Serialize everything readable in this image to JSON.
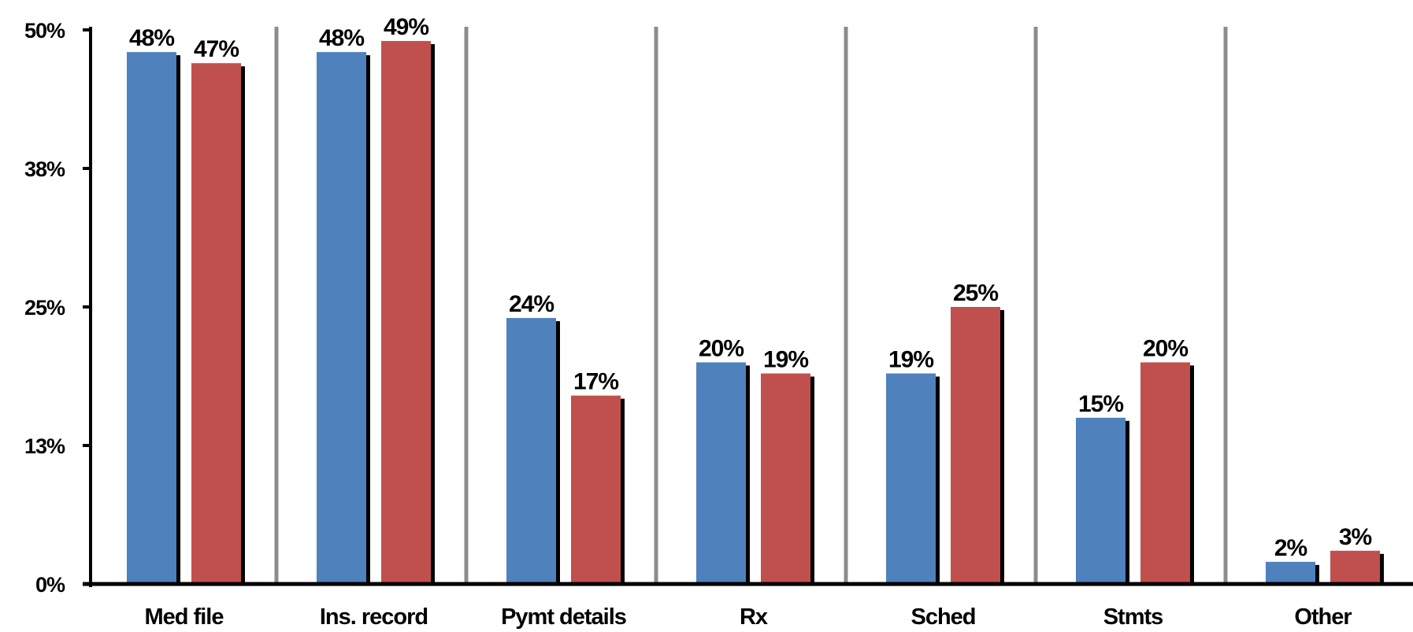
{
  "chart_data": {
    "type": "bar",
    "categories": [
      "Med file",
      "Ins. record",
      "Pymt details",
      "Rx",
      "Sched",
      "Stmts",
      "Other"
    ],
    "series": [
      {
        "values": [
          48,
          48,
          24,
          20,
          19,
          15,
          2
        ],
        "labels": [
          "48%",
          "48%",
          "24%",
          "20%",
          "19%",
          "15%",
          "2%"
        ],
        "color": "#4f81bd"
      },
      {
        "values": [
          47,
          49,
          17,
          19,
          25,
          20,
          3
        ],
        "labels": [
          "47%",
          "49%",
          "17%",
          "19%",
          "25%",
          "20%",
          "3%"
        ],
        "color": "#c0504d"
      }
    ],
    "ylim": [
      0,
      50
    ],
    "yticks": [
      0,
      12.5,
      25,
      37.5,
      50
    ],
    "ytick_labels": [
      "0%",
      "13%",
      "25%",
      "38%",
      "50%"
    ],
    "xlabel": "",
    "ylabel": "",
    "title": "",
    "grid": "vertical category separators",
    "legend": "none"
  }
}
